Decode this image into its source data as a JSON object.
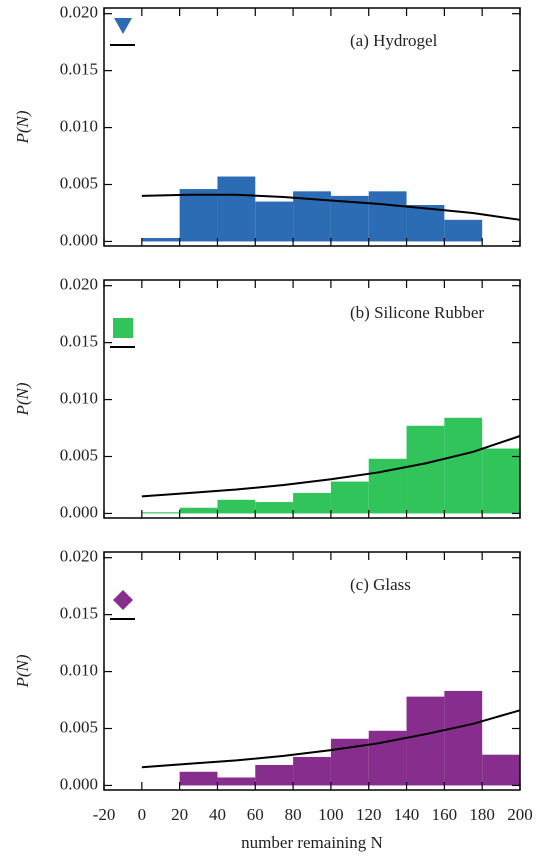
{
  "chart_data": [
    {
      "type": "histogram",
      "title": "(a) Hydrogel",
      "ylabel": "P(N)",
      "color": "#2b6cb4",
      "marker": "triangle",
      "bins": [
        0,
        20,
        40,
        60,
        80,
        100,
        120,
        140,
        160,
        180,
        200
      ],
      "values": [
        0.0003,
        0.0046,
        0.0057,
        0.0035,
        0.0044,
        0.004,
        0.0044,
        0.0032,
        0.0019,
        0.0
      ],
      "fit": {
        "x": [
          0,
          25,
          50,
          75,
          100,
          125,
          150,
          175,
          200
        ],
        "values": [
          0.004,
          0.0041,
          0.0041,
          0.0039,
          0.0036,
          0.0033,
          0.0029,
          0.0025,
          0.0019
        ]
      },
      "xlim": [
        -20,
        200
      ],
      "xticks": [
        -20,
        0,
        20,
        40,
        60,
        80,
        100,
        120,
        140,
        160,
        180,
        200
      ],
      "ylim": [
        -0.0004,
        0.0205
      ],
      "yticks": [
        {
          "value": 0,
          "label": "0.000"
        },
        {
          "value": 0.005,
          "label": "0.005"
        },
        {
          "value": 0.01,
          "label": "0.010"
        },
        {
          "value": 0.015,
          "label": "0.015"
        },
        {
          "value": 0.02,
          "label": "0.020"
        }
      ]
    },
    {
      "type": "histogram",
      "title": "(b) Silicone Rubber",
      "ylabel": "P(N)",
      "color": "#30c45a",
      "marker": "square",
      "bins": [
        0,
        20,
        40,
        60,
        80,
        100,
        120,
        140,
        160,
        180,
        200
      ],
      "values": [
        0.0001,
        0.0005,
        0.0012,
        0.001,
        0.0018,
        0.0028,
        0.0048,
        0.0077,
        0.0084,
        0.0057
      ],
      "fit": {
        "x": [
          0,
          25,
          50,
          75,
          100,
          125,
          150,
          175,
          200
        ],
        "values": [
          0.0015,
          0.0018,
          0.0021,
          0.0025,
          0.003,
          0.0036,
          0.0044,
          0.0054,
          0.0068
        ]
      },
      "xlim": [
        -20,
        200
      ],
      "xticks": [
        -20,
        0,
        20,
        40,
        60,
        80,
        100,
        120,
        140,
        160,
        180,
        200
      ],
      "ylim": [
        -0.0004,
        0.0205
      ],
      "yticks": [
        {
          "value": 0,
          "label": "0.000"
        },
        {
          "value": 0.005,
          "label": "0.005"
        },
        {
          "value": 0.01,
          "label": "0.010"
        },
        {
          "value": 0.015,
          "label": "0.015"
        },
        {
          "value": 0.02,
          "label": "0.020"
        }
      ]
    },
    {
      "type": "histogram",
      "title": "(c) Glass",
      "ylabel": "P(N)",
      "xlabel": "number remaining N",
      "color": "#872d8d",
      "marker": "diamond",
      "bins": [
        0,
        20,
        40,
        60,
        80,
        100,
        120,
        140,
        160,
        180,
        200
      ],
      "values": [
        0.0,
        0.0012,
        0.0007,
        0.0018,
        0.0025,
        0.0041,
        0.0048,
        0.0078,
        0.0083,
        0.0027
      ],
      "fit": {
        "x": [
          0,
          25,
          50,
          75,
          100,
          125,
          150,
          175,
          200
        ],
        "values": [
          0.0016,
          0.0019,
          0.0022,
          0.0026,
          0.0031,
          0.0037,
          0.0045,
          0.0054,
          0.0066
        ]
      },
      "xlim": [
        -20,
        200
      ],
      "xticks": [
        -20,
        0,
        20,
        40,
        60,
        80,
        100,
        120,
        140,
        160,
        180,
        200
      ],
      "ylim": [
        -0.0004,
        0.0205
      ],
      "yticks": [
        {
          "value": 0,
          "label": "0.000"
        },
        {
          "value": 0.005,
          "label": "0.005"
        },
        {
          "value": 0.01,
          "label": "0.010"
        },
        {
          "value": 0.015,
          "label": "0.015"
        },
        {
          "value": 0.02,
          "label": "0.020"
        }
      ]
    }
  ]
}
